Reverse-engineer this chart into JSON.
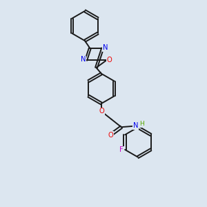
{
  "background_color": "#dce6f0",
  "bond_color": "#1a1a1a",
  "atom_colors": {
    "N": "#0000ee",
    "O": "#ee0000",
    "F": "#cc00cc",
    "H": "#5aaa00",
    "C": "#1a1a1a"
  },
  "figsize": [
    3.0,
    3.0
  ],
  "dpi": 100,
  "lw": 1.4,
  "fs": 7.2
}
